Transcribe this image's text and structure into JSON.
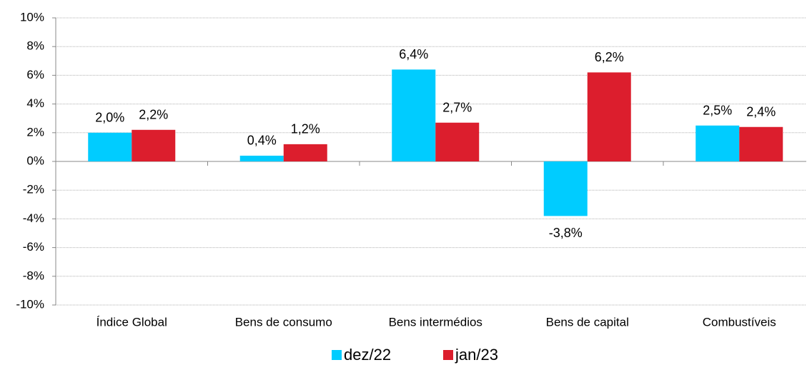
{
  "chart_data": {
    "type": "bar",
    "categories": [
      "Índice Global",
      "Bens de consumo",
      "Bens intermédios",
      "Bens de capital",
      "Combustíveis"
    ],
    "series": [
      {
        "name": "dez/22",
        "color": "#00ccff",
        "values": [
          2.0,
          0.4,
          6.4,
          -3.8,
          2.5
        ],
        "value_labels": [
          "2,0%",
          "0,4%",
          "6,4%",
          "-3,8%",
          "2,5%"
        ]
      },
      {
        "name": "jan/23",
        "color": "#dc1e2d",
        "values": [
          2.2,
          1.2,
          2.7,
          6.2,
          2.4
        ],
        "value_labels": [
          "2,2%",
          "1,2%",
          "2,7%",
          "6,2%",
          "2,4%"
        ]
      }
    ],
    "ylim": [
      -10,
      10
    ],
    "yticks": [
      {
        "value": -10,
        "label": "-10%"
      },
      {
        "value": -8,
        "label": "-8%"
      },
      {
        "value": -6,
        "label": "-6%"
      },
      {
        "value": -4,
        "label": "-4%"
      },
      {
        "value": -2,
        "label": "-2%"
      },
      {
        "value": 0,
        "label": "0%"
      },
      {
        "value": 2,
        "label": "2%"
      },
      {
        "value": 4,
        "label": "4%"
      },
      {
        "value": 6,
        "label": "6%"
      },
      {
        "value": 8,
        "label": "8%"
      },
      {
        "value": 10,
        "label": "10%"
      }
    ],
    "grid": true,
    "legend": "bottom"
  }
}
